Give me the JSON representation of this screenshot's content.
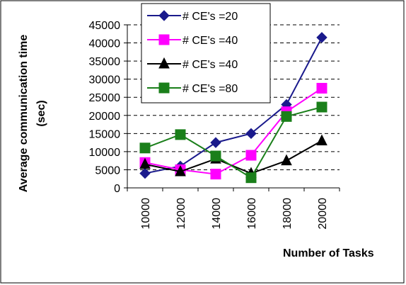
{
  "chart_data": {
    "type": "line",
    "xlabel": "Number of Tasks",
    "ylabel_line1": "Average communication time",
    "ylabel_line2": "(sec)",
    "categories": [
      "10000",
      "12000",
      "14000",
      "16000",
      "18000",
      "20000"
    ],
    "y_ticks": [
      "0",
      "5000",
      "10000",
      "15000",
      "20000",
      "25000",
      "30000",
      "35000",
      "40000",
      "45000"
    ],
    "ylim": [
      0,
      45000
    ],
    "grid": "dashed horizontal gridlines",
    "legend_position": "top-center",
    "series": [
      {
        "name": "# CE's =20",
        "color": "#1a1a8c",
        "marker": "diamond",
        "values": [
          4000,
          6000,
          12500,
          15000,
          23000,
          41500
        ]
      },
      {
        "name": "# CE's =40",
        "color": "#ff00ff",
        "marker": "square",
        "values": [
          7000,
          5000,
          3800,
          9000,
          21000,
          27500
        ]
      },
      {
        "name": "# CE's =40",
        "color": "#000000",
        "marker": "triangle",
        "values": [
          6500,
          4500,
          8000,
          4000,
          7500,
          13000
        ]
      },
      {
        "name": "# CE's =80",
        "color": "#1a7f1a",
        "marker": "square",
        "values": [
          11000,
          14700,
          8800,
          2800,
          19700,
          22300
        ]
      }
    ]
  }
}
